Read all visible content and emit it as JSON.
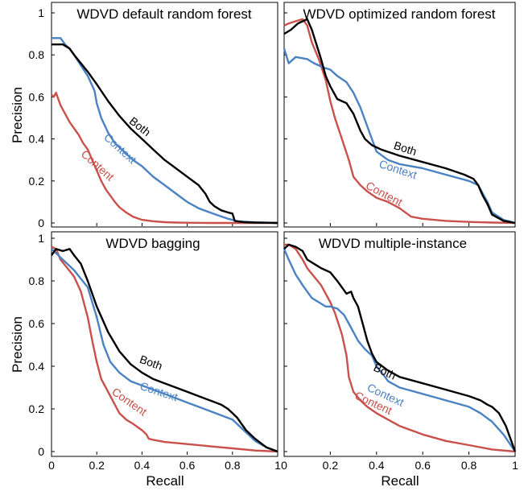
{
  "chart_data": {
    "type": "line",
    "layout": "2x2 grid, shared axes",
    "xlabel": "Recall",
    "ylabel": "Precision",
    "xlim": [
      0,
      1
    ],
    "ylim": [
      0,
      1
    ],
    "xticks": [
      "0",
      "0.2",
      "0.4",
      "0.6",
      "0.8",
      "1"
    ],
    "yticks": [
      "0",
      "0.2",
      "0.4",
      "0.6",
      "0.8",
      "1"
    ],
    "grid": false,
    "legend": "none; series labeled inline on curves",
    "series_colors": {
      "Both": "#000000",
      "Context": "#4a82c3",
      "Content": "#c9504b"
    },
    "panels": [
      {
        "title": "WDVD default random forest",
        "series": [
          {
            "name": "Both",
            "label": "Both",
            "x": [
              0,
              0.02,
              0.05,
              0.08,
              0.1,
              0.13,
              0.16,
              0.2,
              0.25,
              0.3,
              0.35,
              0.4,
              0.45,
              0.5,
              0.55,
              0.6,
              0.65,
              0.68,
              0.7,
              0.72,
              0.75,
              0.78,
              0.8,
              0.81,
              0.85,
              0.9,
              0.95,
              1
            ],
            "y": [
              0.85,
              0.85,
              0.85,
              0.83,
              0.8,
              0.76,
              0.72,
              0.66,
              0.58,
              0.51,
              0.45,
              0.4,
              0.35,
              0.3,
              0.26,
              0.22,
              0.18,
              0.14,
              0.1,
              0.08,
              0.06,
              0.05,
              0.045,
              0.01,
              0.004,
              0.002,
              0.001,
              0
            ]
          },
          {
            "name": "Context",
            "label": "Context",
            "x": [
              0,
              0.04,
              0.06,
              0.08,
              0.1,
              0.13,
              0.16,
              0.19,
              0.2,
              0.22,
              0.25,
              0.28,
              0.32,
              0.36,
              0.4,
              0.45,
              0.5,
              0.55,
              0.6,
              0.65,
              0.7,
              0.74,
              0.78,
              0.8,
              0.82,
              0.9,
              1
            ],
            "y": [
              0.88,
              0.88,
              0.85,
              0.83,
              0.8,
              0.75,
              0.7,
              0.63,
              0.57,
              0.5,
              0.43,
              0.38,
              0.34,
              0.3,
              0.27,
              0.22,
              0.18,
              0.14,
              0.1,
              0.07,
              0.05,
              0.035,
              0.02,
              0.015,
              0.008,
              0.003,
              0
            ]
          },
          {
            "name": "Content",
            "label": "Content",
            "x": [
              0,
              0.01,
              0.02,
              0.04,
              0.06,
              0.08,
              0.1,
              0.12,
              0.14,
              0.16,
              0.18,
              0.2,
              0.22,
              0.24,
              0.26,
              0.28,
              0.3,
              0.33,
              0.36,
              0.4,
              0.45,
              0.5,
              0.55,
              0.6,
              0.7,
              1
            ],
            "y": [
              0.61,
              0.6,
              0.62,
              0.56,
              0.52,
              0.48,
              0.45,
              0.42,
              0.38,
              0.35,
              0.3,
              0.25,
              0.2,
              0.16,
              0.13,
              0.1,
              0.075,
              0.05,
              0.03,
              0.015,
              0.008,
              0.004,
              0.002,
              0.001,
              0,
              0
            ]
          }
        ]
      },
      {
        "title": "WDVD optimized random forest",
        "series": [
          {
            "name": "Both",
            "label": "Both",
            "x": [
              0,
              0.03,
              0.06,
              0.1,
              0.12,
              0.14,
              0.16,
              0.18,
              0.2,
              0.23,
              0.27,
              0.3,
              0.33,
              0.35,
              0.38,
              0.42,
              0.5,
              0.6,
              0.7,
              0.78,
              0.82,
              0.84,
              0.86,
              0.88,
              0.9,
              0.95,
              1
            ],
            "y": [
              0.9,
              0.92,
              0.95,
              0.97,
              0.92,
              0.85,
              0.78,
              0.7,
              0.65,
              0.59,
              0.57,
              0.52,
              0.44,
              0.4,
              0.37,
              0.35,
              0.32,
              0.29,
              0.26,
              0.23,
              0.21,
              0.18,
              0.13,
              0.09,
              0.04,
              0.01,
              0
            ]
          },
          {
            "name": "Context",
            "label": "Context",
            "x": [
              0,
              0.02,
              0.05,
              0.1,
              0.13,
              0.17,
              0.2,
              0.23,
              0.27,
              0.3,
              0.33,
              0.36,
              0.4,
              0.45,
              0.5,
              0.6,
              0.7,
              0.8,
              0.84,
              0.86,
              0.88,
              0.9,
              0.95,
              1
            ],
            "y": [
              0.83,
              0.76,
              0.79,
              0.78,
              0.76,
              0.74,
              0.73,
              0.7,
              0.67,
              0.62,
              0.55,
              0.46,
              0.34,
              0.3,
              0.28,
              0.26,
              0.23,
              0.2,
              0.18,
              0.14,
              0.1,
              0.05,
              0.015,
              0
            ]
          },
          {
            "name": "Content",
            "label": "Content",
            "x": [
              0,
              0.02,
              0.05,
              0.08,
              0.1,
              0.12,
              0.15,
              0.18,
              0.2,
              0.22,
              0.25,
              0.28,
              0.3,
              0.33,
              0.36,
              0.4,
              0.45,
              0.5,
              0.55,
              0.6,
              0.7,
              0.8,
              0.9,
              1
            ],
            "y": [
              0.94,
              0.95,
              0.96,
              0.97,
              0.94,
              0.86,
              0.78,
              0.68,
              0.58,
              0.5,
              0.4,
              0.3,
              0.22,
              0.18,
              0.15,
              0.12,
              0.1,
              0.07,
              0.03,
              0.02,
              0.01,
              0.005,
              0.002,
              0
            ]
          }
        ]
      },
      {
        "title": "WDVD bagging",
        "series": [
          {
            "name": "Both",
            "label": "Both",
            "x": [
              0,
              0.02,
              0.05,
              0.08,
              0.1,
              0.13,
              0.16,
              0.2,
              0.25,
              0.3,
              0.35,
              0.4,
              0.45,
              0.5,
              0.55,
              0.6,
              0.65,
              0.7,
              0.75,
              0.78,
              0.8,
              0.82,
              0.84,
              0.86,
              0.9,
              0.95,
              1
            ],
            "y": [
              0.92,
              0.95,
              0.94,
              0.95,
              0.92,
              0.88,
              0.8,
              0.68,
              0.56,
              0.47,
              0.41,
              0.37,
              0.34,
              0.32,
              0.3,
              0.28,
              0.26,
              0.24,
              0.22,
              0.2,
              0.18,
              0.16,
              0.13,
              0.1,
              0.06,
              0.02,
              0
            ]
          },
          {
            "name": "Context",
            "label": "Context",
            "x": [
              0,
              0.02,
              0.05,
              0.1,
              0.13,
              0.16,
              0.2,
              0.23,
              0.26,
              0.3,
              0.35,
              0.4,
              0.45,
              0.5,
              0.55,
              0.6,
              0.65,
              0.7,
              0.75,
              0.8,
              0.85,
              0.9,
              0.95,
              1
            ],
            "y": [
              0.95,
              0.93,
              0.9,
              0.85,
              0.81,
              0.77,
              0.63,
              0.5,
              0.42,
              0.37,
              0.33,
              0.31,
              0.29,
              0.27,
              0.25,
              0.23,
              0.21,
              0.19,
              0.17,
              0.15,
              0.1,
              0.05,
              0.02,
              0
            ]
          },
          {
            "name": "Content",
            "label": "Content",
            "x": [
              0,
              0.02,
              0.04,
              0.07,
              0.1,
              0.13,
              0.16,
              0.18,
              0.2,
              0.22,
              0.25,
              0.28,
              0.3,
              0.33,
              0.36,
              0.4,
              0.42,
              0.43,
              0.45,
              0.5,
              0.6,
              0.7,
              0.8,
              0.9,
              1
            ],
            "y": [
              0.96,
              0.95,
              0.9,
              0.86,
              0.82,
              0.75,
              0.63,
              0.52,
              0.42,
              0.34,
              0.28,
              0.22,
              0.18,
              0.15,
              0.13,
              0.1,
              0.08,
              0.06,
              0.055,
              0.045,
              0.035,
              0.025,
              0.015,
              0.005,
              0
            ]
          }
        ]
      },
      {
        "title": "WDVD multiple-instance",
        "series": [
          {
            "name": "Both",
            "label": "Both",
            "x": [
              0,
              0.02,
              0.05,
              0.08,
              0.1,
              0.13,
              0.16,
              0.2,
              0.23,
              0.25,
              0.27,
              0.29,
              0.3,
              0.32,
              0.34,
              0.36,
              0.38,
              0.4,
              0.45,
              0.5,
              0.6,
              0.7,
              0.8,
              0.85,
              0.88,
              0.9,
              0.93,
              0.96,
              1
            ],
            "y": [
              0.95,
              0.97,
              0.96,
              0.94,
              0.9,
              0.88,
              0.86,
              0.84,
              0.8,
              0.77,
              0.74,
              0.75,
              0.72,
              0.68,
              0.6,
              0.52,
              0.46,
              0.42,
              0.38,
              0.35,
              0.32,
              0.29,
              0.26,
              0.24,
              0.22,
              0.21,
              0.18,
              0.12,
              0
            ]
          },
          {
            "name": "Context",
            "label": "Context",
            "x": [
              0,
              0.02,
              0.05,
              0.08,
              0.1,
              0.12,
              0.15,
              0.18,
              0.2,
              0.23,
              0.26,
              0.28,
              0.3,
              0.32,
              0.35,
              0.38,
              0.4,
              0.43,
              0.45,
              0.5,
              0.6,
              0.7,
              0.8,
              0.85,
              0.9,
              0.95,
              1
            ],
            "y": [
              0.95,
              0.9,
              0.83,
              0.78,
              0.75,
              0.72,
              0.7,
              0.68,
              0.68,
              0.67,
              0.64,
              0.6,
              0.56,
              0.52,
              0.48,
              0.45,
              0.4,
              0.36,
              0.33,
              0.3,
              0.27,
              0.24,
              0.21,
              0.18,
              0.14,
              0.08,
              0
            ]
          },
          {
            "name": "Content",
            "label": "Content",
            "x": [
              0,
              0.02,
              0.05,
              0.08,
              0.1,
              0.13,
              0.16,
              0.18,
              0.2,
              0.22,
              0.25,
              0.27,
              0.28,
              0.3,
              0.33,
              0.36,
              0.4,
              0.45,
              0.5,
              0.6,
              0.7,
              0.8,
              0.9,
              1
            ],
            "y": [
              0.97,
              0.97,
              0.95,
              0.9,
              0.86,
              0.82,
              0.78,
              0.74,
              0.7,
              0.65,
              0.55,
              0.45,
              0.35,
              0.28,
              0.24,
              0.21,
              0.18,
              0.15,
              0.12,
              0.08,
              0.05,
              0.03,
              0.01,
              0
            ]
          }
        ]
      }
    ]
  }
}
